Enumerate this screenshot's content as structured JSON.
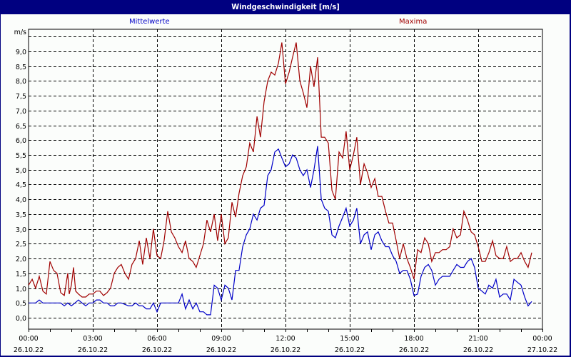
{
  "window": {
    "title": "Windgeschwindigkeit [m/s]",
    "background": "#000080",
    "panel_background": "#fbfdfb"
  },
  "legend": {
    "mean_label": "Mittelwerte",
    "max_label": "Maxima",
    "mean_color": "#0000c8",
    "max_color": "#a00000"
  },
  "chart_data": {
    "type": "line",
    "title": "Windgeschwindigkeit [m/s]",
    "xlabel": "",
    "ylabel": "m/s",
    "ylim": [
      -0.4,
      9.7
    ],
    "xlim_hours": [
      0,
      24
    ],
    "grid": true,
    "legend_position": "top",
    "y_ticks": [
      "0,0",
      "0,5",
      "1,0",
      "1,5",
      "2,0",
      "2,5",
      "3,0",
      "3,5",
      "4,0",
      "4,5",
      "5,0",
      "5,5",
      "6,0",
      "6,5",
      "7,0",
      "7,5",
      "8,0",
      "8,5",
      "9,0"
    ],
    "x_ticks": [
      {
        "time": "00:00",
        "date": "26.10.22"
      },
      {
        "time": "03:00",
        "date": "26.10.22"
      },
      {
        "time": "06:00",
        "date": "26.10.22"
      },
      {
        "time": "09:00",
        "date": "26.10.22"
      },
      {
        "time": "12:00",
        "date": "26.10.22"
      },
      {
        "time": "15:00",
        "date": "26.10.22"
      },
      {
        "time": "18:00",
        "date": "26.10.22"
      },
      {
        "time": "21:00",
        "date": "26.10.22"
      },
      {
        "time": "00:00",
        "date": "27.10.22"
      }
    ],
    "series": [
      {
        "name": "Maxima",
        "color": "#a00000",
        "points": [
          [
            0.0,
            1.1
          ],
          [
            0.17,
            1.3
          ],
          [
            0.33,
            1.0
          ],
          [
            0.5,
            1.4
          ],
          [
            0.67,
            0.9
          ],
          [
            0.83,
            0.8
          ],
          [
            1.0,
            1.9
          ],
          [
            1.17,
            1.6
          ],
          [
            1.33,
            1.5
          ],
          [
            1.5,
            0.85
          ],
          [
            1.67,
            0.75
          ],
          [
            1.83,
            1.5
          ],
          [
            1.9,
            0.8
          ],
          [
            2.0,
            1.1
          ],
          [
            2.1,
            1.7
          ],
          [
            2.2,
            0.9
          ],
          [
            2.33,
            0.8
          ],
          [
            2.5,
            0.7
          ],
          [
            2.67,
            0.7
          ],
          [
            2.83,
            0.8
          ],
          [
            3.0,
            0.8
          ],
          [
            3.17,
            0.9
          ],
          [
            3.33,
            0.9
          ],
          [
            3.5,
            0.75
          ],
          [
            3.67,
            0.85
          ],
          [
            3.83,
            1.0
          ],
          [
            4.0,
            1.5
          ],
          [
            4.17,
            1.7
          ],
          [
            4.33,
            1.8
          ],
          [
            4.5,
            1.5
          ],
          [
            4.67,
            1.3
          ],
          [
            4.83,
            1.8
          ],
          [
            5.0,
            2.0
          ],
          [
            5.17,
            2.6
          ],
          [
            5.33,
            1.8
          ],
          [
            5.5,
            2.7
          ],
          [
            5.67,
            2.0
          ],
          [
            5.83,
            3.0
          ],
          [
            6.0,
            2.1
          ],
          [
            6.17,
            2.0
          ],
          [
            6.33,
            2.6
          ],
          [
            6.5,
            3.6
          ],
          [
            6.67,
            2.9
          ],
          [
            6.83,
            2.7
          ],
          [
            7.0,
            2.4
          ],
          [
            7.17,
            2.2
          ],
          [
            7.33,
            2.6
          ],
          [
            7.5,
            2.0
          ],
          [
            7.67,
            1.9
          ],
          [
            7.83,
            1.7
          ],
          [
            8.0,
            2.1
          ],
          [
            8.17,
            2.5
          ],
          [
            8.33,
            3.3
          ],
          [
            8.5,
            2.9
          ],
          [
            8.67,
            3.5
          ],
          [
            8.83,
            2.6
          ],
          [
            9.0,
            3.5
          ],
          [
            9.17,
            2.5
          ],
          [
            9.33,
            2.7
          ],
          [
            9.5,
            3.9
          ],
          [
            9.67,
            3.4
          ],
          [
            9.83,
            4.2
          ],
          [
            10.0,
            4.8
          ],
          [
            10.17,
            5.1
          ],
          [
            10.33,
            5.9
          ],
          [
            10.5,
            5.6
          ],
          [
            10.67,
            6.8
          ],
          [
            10.83,
            6.1
          ],
          [
            11.0,
            7.3
          ],
          [
            11.17,
            8.0
          ],
          [
            11.33,
            8.3
          ],
          [
            11.5,
            8.2
          ],
          [
            11.67,
            8.6
          ],
          [
            11.83,
            9.3
          ],
          [
            12.0,
            7.9
          ],
          [
            12.17,
            8.3
          ],
          [
            12.33,
            8.8
          ],
          [
            12.5,
            9.3
          ],
          [
            12.67,
            8.0
          ],
          [
            12.83,
            7.6
          ],
          [
            13.0,
            7.1
          ],
          [
            13.17,
            8.5
          ],
          [
            13.33,
            7.8
          ],
          [
            13.5,
            8.8
          ],
          [
            13.67,
            6.1
          ],
          [
            13.83,
            6.1
          ],
          [
            14.0,
            5.9
          ],
          [
            14.17,
            4.3
          ],
          [
            14.33,
            4.0
          ],
          [
            14.5,
            5.6
          ],
          [
            14.67,
            5.4
          ],
          [
            14.83,
            6.3
          ],
          [
            15.0,
            5.0
          ],
          [
            15.17,
            5.5
          ],
          [
            15.33,
            6.1
          ],
          [
            15.5,
            4.5
          ],
          [
            15.67,
            5.2
          ],
          [
            15.83,
            4.9
          ],
          [
            16.0,
            4.4
          ],
          [
            16.17,
            4.7
          ],
          [
            16.33,
            4.1
          ],
          [
            16.5,
            4.1
          ],
          [
            16.67,
            3.6
          ],
          [
            16.83,
            3.2
          ],
          [
            17.0,
            3.2
          ],
          [
            17.17,
            2.6
          ],
          [
            17.33,
            2.0
          ],
          [
            17.5,
            2.5
          ],
          [
            17.67,
            2.0
          ],
          [
            17.83,
            1.7
          ],
          [
            18.0,
            1.3
          ],
          [
            18.17,
            2.3
          ],
          [
            18.33,
            2.2
          ],
          [
            18.5,
            2.7
          ],
          [
            18.67,
            2.5
          ],
          [
            18.83,
            1.9
          ],
          [
            19.0,
            2.2
          ],
          [
            19.17,
            2.2
          ],
          [
            19.33,
            2.3
          ],
          [
            19.5,
            2.3
          ],
          [
            19.67,
            2.4
          ],
          [
            19.83,
            3.0
          ],
          [
            20.0,
            2.7
          ],
          [
            20.17,
            2.8
          ],
          [
            20.33,
            3.6
          ],
          [
            20.5,
            3.3
          ],
          [
            20.67,
            2.9
          ],
          [
            20.83,
            2.8
          ],
          [
            21.0,
            2.4
          ],
          [
            21.17,
            1.9
          ],
          [
            21.33,
            1.9
          ],
          [
            21.5,
            2.2
          ],
          [
            21.67,
            2.6
          ],
          [
            21.83,
            2.1
          ],
          [
            22.0,
            2.0
          ],
          [
            22.17,
            2.0
          ],
          [
            22.33,
            2.4
          ],
          [
            22.5,
            1.9
          ],
          [
            22.67,
            2.0
          ],
          [
            22.83,
            2.0
          ],
          [
            23.0,
            2.2
          ],
          [
            23.17,
            1.9
          ],
          [
            23.33,
            1.7
          ],
          [
            23.5,
            2.2
          ]
        ]
      },
      {
        "name": "Mittelwerte",
        "color": "#0000c8",
        "points": [
          [
            0.0,
            0.5
          ],
          [
            0.17,
            0.5
          ],
          [
            0.33,
            0.5
          ],
          [
            0.5,
            0.6
          ],
          [
            0.67,
            0.5
          ],
          [
            0.83,
            0.5
          ],
          [
            1.0,
            0.5
          ],
          [
            1.33,
            0.5
          ],
          [
            1.5,
            0.5
          ],
          [
            1.67,
            0.4
          ],
          [
            1.83,
            0.5
          ],
          [
            2.0,
            0.4
          ],
          [
            2.17,
            0.5
          ],
          [
            2.33,
            0.6
          ],
          [
            2.5,
            0.5
          ],
          [
            2.67,
            0.4
          ],
          [
            2.83,
            0.5
          ],
          [
            3.0,
            0.5
          ],
          [
            3.17,
            0.6
          ],
          [
            3.33,
            0.6
          ],
          [
            3.5,
            0.5
          ],
          [
            3.67,
            0.5
          ],
          [
            3.83,
            0.4
          ],
          [
            4.0,
            0.4
          ],
          [
            4.17,
            0.5
          ],
          [
            4.33,
            0.5
          ],
          [
            4.5,
            0.45
          ],
          [
            4.67,
            0.4
          ],
          [
            4.83,
            0.4
          ],
          [
            5.0,
            0.5
          ],
          [
            5.17,
            0.4
          ],
          [
            5.33,
            0.4
          ],
          [
            5.5,
            0.3
          ],
          [
            5.67,
            0.3
          ],
          [
            5.83,
            0.5
          ],
          [
            6.0,
            0.2
          ],
          [
            6.17,
            0.5
          ],
          [
            6.33,
            0.5
          ],
          [
            6.5,
            0.5
          ],
          [
            6.67,
            0.5
          ],
          [
            6.83,
            0.5
          ],
          [
            7.0,
            0.5
          ],
          [
            7.17,
            0.8
          ],
          [
            7.33,
            0.3
          ],
          [
            7.5,
            0.6
          ],
          [
            7.67,
            0.3
          ],
          [
            7.83,
            0.5
          ],
          [
            8.0,
            0.2
          ],
          [
            8.17,
            0.2
          ],
          [
            8.33,
            0.1
          ],
          [
            8.5,
            0.1
          ],
          [
            8.67,
            1.1
          ],
          [
            8.83,
            1.0
          ],
          [
            9.0,
            0.6
          ],
          [
            9.17,
            1.1
          ],
          [
            9.33,
            1.0
          ],
          [
            9.5,
            0.6
          ],
          [
            9.67,
            1.6
          ],
          [
            9.83,
            1.6
          ],
          [
            10.0,
            2.4
          ],
          [
            10.17,
            2.8
          ],
          [
            10.33,
            3.0
          ],
          [
            10.5,
            3.5
          ],
          [
            10.67,
            3.3
          ],
          [
            10.83,
            3.7
          ],
          [
            11.0,
            3.8
          ],
          [
            11.17,
            4.8
          ],
          [
            11.33,
            5.0
          ],
          [
            11.5,
            5.6
          ],
          [
            11.67,
            5.7
          ],
          [
            11.83,
            5.4
          ],
          [
            12.0,
            5.1
          ],
          [
            12.17,
            5.2
          ],
          [
            12.33,
            5.5
          ],
          [
            12.5,
            5.4
          ],
          [
            12.67,
            5.0
          ],
          [
            12.83,
            4.8
          ],
          [
            13.0,
            5.0
          ],
          [
            13.17,
            4.4
          ],
          [
            13.33,
            5.0
          ],
          [
            13.5,
            5.8
          ],
          [
            13.67,
            4.0
          ],
          [
            13.83,
            3.7
          ],
          [
            14.0,
            3.6
          ],
          [
            14.17,
            2.8
          ],
          [
            14.33,
            2.7
          ],
          [
            14.5,
            3.1
          ],
          [
            14.67,
            3.4
          ],
          [
            14.83,
            3.7
          ],
          [
            15.0,
            3.1
          ],
          [
            15.17,
            3.3
          ],
          [
            15.33,
            3.7
          ],
          [
            15.5,
            2.5
          ],
          [
            15.67,
            2.8
          ],
          [
            15.83,
            2.9
          ],
          [
            16.0,
            2.3
          ],
          [
            16.17,
            2.8
          ],
          [
            16.33,
            2.9
          ],
          [
            16.5,
            2.6
          ],
          [
            16.67,
            2.4
          ],
          [
            16.83,
            2.4
          ],
          [
            17.0,
            2.1
          ],
          [
            17.17,
            1.9
          ],
          [
            17.33,
            1.5
          ],
          [
            17.5,
            1.6
          ],
          [
            17.67,
            1.6
          ],
          [
            17.83,
            1.3
          ],
          [
            18.0,
            0.75
          ],
          [
            18.17,
            0.8
          ],
          [
            18.33,
            1.4
          ],
          [
            18.5,
            1.7
          ],
          [
            18.67,
            1.8
          ],
          [
            18.83,
            1.6
          ],
          [
            19.0,
            1.1
          ],
          [
            19.17,
            1.3
          ],
          [
            19.33,
            1.4
          ],
          [
            19.5,
            1.4
          ],
          [
            19.67,
            1.4
          ],
          [
            19.83,
            1.6
          ],
          [
            20.0,
            1.8
          ],
          [
            20.17,
            1.7
          ],
          [
            20.33,
            1.7
          ],
          [
            20.5,
            1.9
          ],
          [
            20.67,
            2.0
          ],
          [
            20.83,
            1.7
          ],
          [
            21.0,
            1.0
          ],
          [
            21.17,
            0.9
          ],
          [
            21.33,
            0.8
          ],
          [
            21.5,
            1.1
          ],
          [
            21.67,
            1.0
          ],
          [
            21.83,
            1.3
          ],
          [
            22.0,
            0.7
          ],
          [
            22.17,
            0.8
          ],
          [
            22.33,
            0.8
          ],
          [
            22.5,
            0.6
          ],
          [
            22.67,
            1.3
          ],
          [
            22.83,
            1.2
          ],
          [
            23.0,
            1.1
          ],
          [
            23.17,
            0.7
          ],
          [
            23.33,
            0.4
          ],
          [
            23.5,
            0.55
          ]
        ]
      }
    ]
  }
}
